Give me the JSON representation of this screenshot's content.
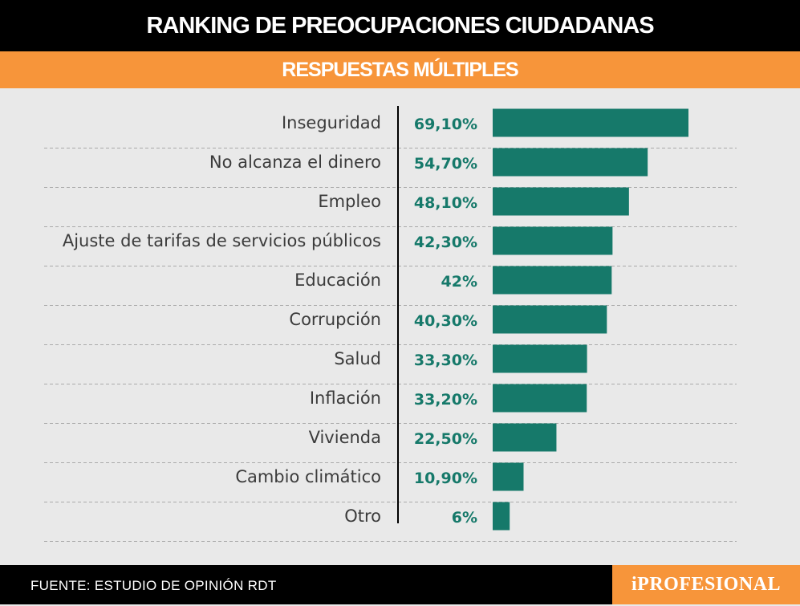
{
  "header": {
    "title": "RANKING DE PREOCUPACIONES CIUDADANAS",
    "subtitle": "RESPUESTAS MÚLTIPLES"
  },
  "colors": {
    "bar": "#16796a",
    "value_text": "#16796a",
    "accent": "#f7953a",
    "header_bg": "#000000",
    "background": "#e9e9e9"
  },
  "chart_data": {
    "type": "bar",
    "orientation": "horizontal",
    "categories": [
      "Inseguridad",
      "No alcanza el dinero",
      "Empleo",
      "Ajuste de tarifas de servicios públicos",
      "Educación",
      "Corrupción",
      "Salud",
      "Inflación",
      "Vivienda",
      "Cambio climático",
      "Otro"
    ],
    "values": [
      69.1,
      54.7,
      48.1,
      42.3,
      42,
      40.3,
      33.3,
      33.2,
      22.5,
      10.9,
      6
    ],
    "value_labels": [
      "69,10%",
      "54,70%",
      "48,10%",
      "42,30%",
      "42%",
      "40,30%",
      "33,30%",
      "33,20%",
      "22,50%",
      "10,90%",
      "6%"
    ],
    "xlim": [
      0,
      69.1
    ],
    "grid": "dashed separators between rows"
  },
  "footer": {
    "source": "FUENTE: ESTUDIO DE OPINIÓN RDT",
    "logo": "iPROFESIONAL"
  }
}
